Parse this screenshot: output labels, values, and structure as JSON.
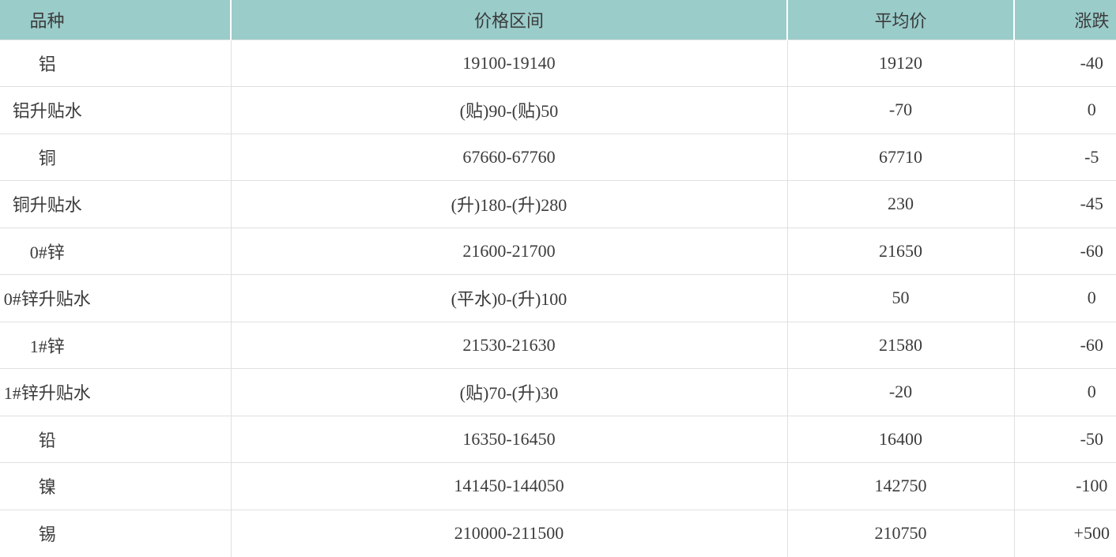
{
  "theme": {
    "header_bg": "#9accca",
    "header_divider": "#ffffff",
    "row_bg": "#ffffff",
    "border_color": "#e0e0e0",
    "text_color": "#3b3b3b"
  },
  "chart_data": {
    "type": "table",
    "columns": [
      "品种",
      "价格区间",
      "平均价",
      "涨跌"
    ],
    "rows": [
      [
        "铝",
        "19100-19140",
        "19120",
        "-40"
      ],
      [
        "铝升贴水",
        "(贴)90-(贴)50",
        "-70",
        "0"
      ],
      [
        "铜",
        "67660-67760",
        "67710",
        "-5"
      ],
      [
        "铜升贴水",
        "(升)180-(升)280",
        "230",
        "-45"
      ],
      [
        "0#锌",
        "21600-21700",
        "21650",
        "-60"
      ],
      [
        "0#锌升贴水",
        "(平水)0-(升)100",
        "50",
        "0"
      ],
      [
        "1#锌",
        "21530-21630",
        "21580",
        "-60"
      ],
      [
        "1#锌升贴水",
        "(贴)70-(升)30",
        "-20",
        "0"
      ],
      [
        "铅",
        "16350-16450",
        "16400",
        "-50"
      ],
      [
        "镍",
        "141450-144050",
        "142750",
        "-100"
      ],
      [
        "锡",
        "210000-211500",
        "210750",
        "+500"
      ]
    ]
  }
}
